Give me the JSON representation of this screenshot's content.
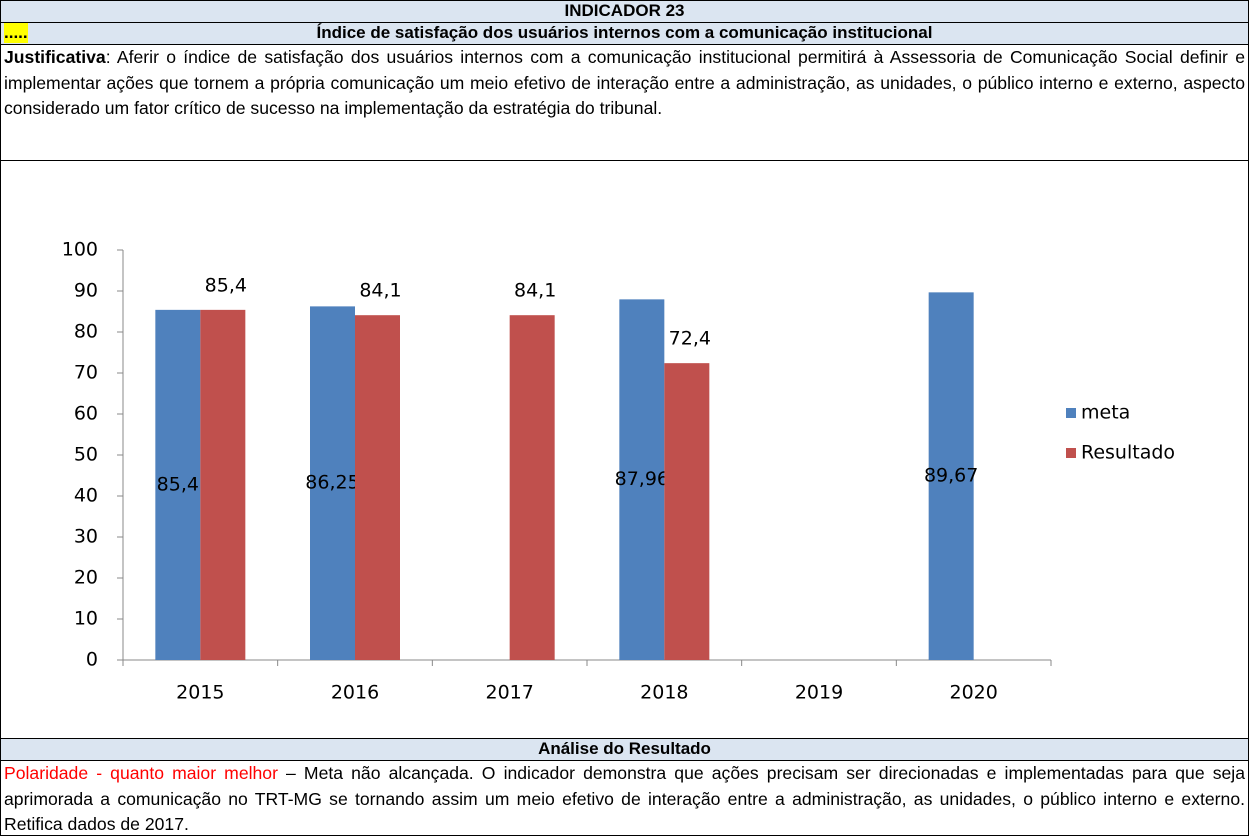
{
  "header": {
    "title": "INDICADOR 23",
    "marker": ".....",
    "subtitle": "Índice de satisfação dos usuários internos com a comunicação institucional"
  },
  "justification": {
    "label": "Justificativa",
    "text": ": Aferir o índice de satisfação dos usuários internos com a comunicação institucional permitirá à Assessoria de Comunicação Social definir e implementar ações que tornem a própria comunicação um meio efetivo de interação entre a administração, as unidades, o público interno e externo, aspecto considerado um fator crítico de sucesso na implementação da estratégia do tribunal."
  },
  "chart_data": {
    "type": "bar",
    "categories": [
      "2015",
      "2016",
      "2017",
      "2018",
      "2019",
      "2020"
    ],
    "series": [
      {
        "name": "meta",
        "color": "#4f81bd",
        "values": [
          85.4,
          86.25,
          null,
          87.96,
          null,
          89.67
        ],
        "value_labels": [
          "85,4",
          "86,25",
          null,
          "87,96",
          null,
          "89,67"
        ]
      },
      {
        "name": "Resultado",
        "color": "#c0504d",
        "values": [
          85.4,
          84.1,
          84.1,
          72.4,
          null,
          null
        ],
        "value_labels": [
          "85,4",
          "84,1",
          "84,1",
          "72,4",
          null,
          null
        ]
      }
    ],
    "ylim": [
      0,
      100
    ],
    "yticks": [
      0,
      10,
      20,
      30,
      40,
      50,
      60,
      70,
      80,
      90,
      100
    ],
    "grid": false,
    "legend": "right"
  },
  "analysis": {
    "title": "Análise do Resultado",
    "polarity": "Polaridade - quanto maior melhor",
    "text": " – Meta não alcançada. O indicador demonstra que ações precisam ser direcionadas e implementadas para que seja aprimorada a comunicação no TRT-MG se tornando assim um meio efetivo de interação entre a administração, as unidades, o público interno e externo. Retifica dados de 2017."
  }
}
